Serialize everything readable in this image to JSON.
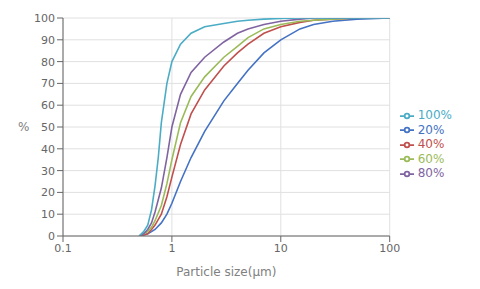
{
  "chart_data": {
    "type": "line",
    "xlabel": "Particle size(μm)",
    "ylabel": "%",
    "log": "x",
    "xlim": [
      0.1,
      100
    ],
    "xticks": [
      0.1,
      1,
      10,
      100
    ],
    "ylim": [
      0,
      100
    ],
    "yticks": [
      0,
      10,
      20,
      30,
      40,
      50,
      60,
      70,
      80,
      90,
      100
    ],
    "grid": true,
    "legend": "right",
    "series": [
      {
        "name": "20%",
        "color": "#4472C4",
        "x": [
          0.5,
          0.55,
          0.6,
          0.65,
          0.7,
          0.8,
          0.9,
          1.0,
          1.2,
          1.5,
          2.0,
          3.0,
          4.0,
          5.0,
          7.0,
          10.0,
          15.0,
          20.0,
          30.0,
          50.0,
          100.0
        ],
        "values": [
          0,
          0.5,
          1,
          2,
          3,
          6,
          10,
          15,
          25,
          36,
          48,
          62,
          70,
          76,
          84,
          90,
          95,
          97,
          98.5,
          99.5,
          100
        ]
      },
      {
        "name": "40%",
        "color": "#C0504D",
        "x": [
          0.5,
          0.55,
          0.6,
          0.65,
          0.7,
          0.8,
          0.9,
          1.0,
          1.2,
          1.5,
          2.0,
          3.0,
          4.0,
          5.0,
          7.0,
          10.0,
          15.0,
          20.0,
          30.0,
          50.0,
          100.0
        ],
        "values": [
          0,
          0.5,
          1,
          3,
          5,
          10,
          18,
          27,
          42,
          56,
          67,
          78,
          84,
          88,
          93,
          96,
          98,
          99,
          99.5,
          100,
          100
        ]
      },
      {
        "name": "60%",
        "color": "#9BBB59",
        "x": [
          0.5,
          0.55,
          0.6,
          0.65,
          0.7,
          0.8,
          0.9,
          1.0,
          1.2,
          1.5,
          2.0,
          3.0,
          4.0,
          5.0,
          7.0,
          10.0,
          15.0,
          20.0,
          30.0,
          50.0,
          100.0
        ],
        "values": [
          0,
          1,
          2,
          4,
          7,
          14,
          24,
          35,
          52,
          64,
          73,
          82,
          87,
          91,
          95,
          97,
          98.5,
          99,
          99.5,
          100,
          100
        ]
      },
      {
        "name": "80%",
        "color": "#8064A2",
        "x": [
          0.5,
          0.55,
          0.6,
          0.65,
          0.7,
          0.8,
          0.9,
          1.0,
          1.2,
          1.5,
          2.0,
          3.0,
          4.0,
          5.0,
          7.0,
          10.0,
          15.0,
          20.0,
          30.0,
          50.0,
          100.0
        ],
        "values": [
          0,
          1,
          3,
          6,
          11,
          22,
          36,
          50,
          65,
          75,
          82,
          89,
          93,
          95,
          97,
          98.5,
          99.5,
          100,
          100,
          100,
          100
        ]
      },
      {
        "name": "100%",
        "color": "#4BACC6",
        "x": [
          0.5,
          0.55,
          0.6,
          0.65,
          0.7,
          0.75,
          0.8,
          0.9,
          1.0,
          1.2,
          1.5,
          2.0,
          3.0,
          4.0,
          5.0,
          7.0,
          10.0,
          15.0,
          20.0,
          30.0,
          50.0,
          100.0
        ],
        "values": [
          0,
          2,
          5,
          12,
          23,
          36,
          52,
          70,
          80,
          88,
          93,
          96,
          97.5,
          98.5,
          99,
          99.5,
          99.8,
          100,
          100,
          100,
          100,
          100
        ]
      }
    ]
  }
}
